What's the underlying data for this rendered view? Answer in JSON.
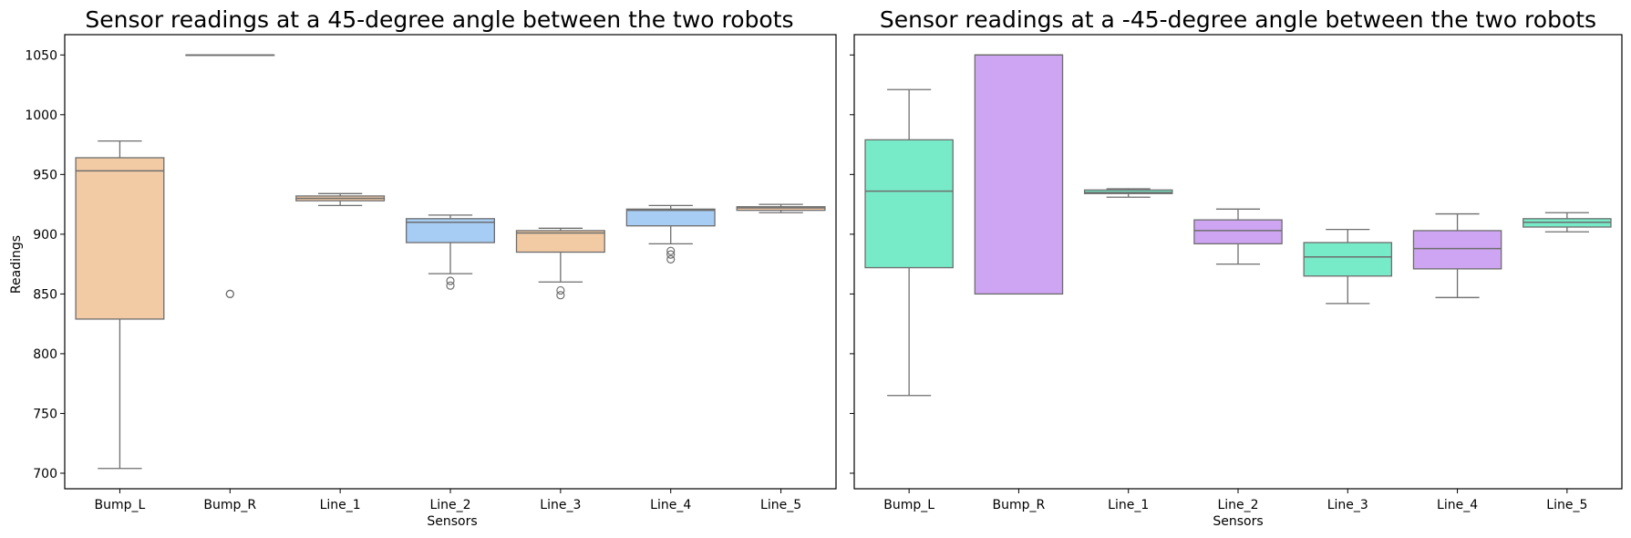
{
  "chart_data": [
    {
      "type": "box",
      "title": "Sensor readings at a 45-degree angle between the two robots",
      "xlabel": "Sensors",
      "ylabel": "Readings",
      "ylim": [
        687,
        1067
      ],
      "yticks": [
        700,
        750,
        800,
        850,
        900,
        950,
        1000,
        1050
      ],
      "categories": [
        "Bump_L",
        "Bump_R",
        "Line_1",
        "Line_2",
        "Line_3",
        "Line_4",
        "Line_5"
      ],
      "boxes": [
        {
          "category": "Bump_L",
          "whisker_low": 704,
          "q1": 829,
          "median": 953,
          "q3": 964,
          "whisker_high": 978,
          "outliers": [],
          "color": "#f2cba5"
        },
        {
          "category": "Bump_R",
          "whisker_low": 1050,
          "q1": 1050,
          "median": 1050,
          "q3": 1050,
          "whisker_high": 1050,
          "outliers": [
            850,
            850
          ],
          "color": "#a7cdf5"
        },
        {
          "category": "Line_1",
          "whisker_low": 924,
          "q1": 928,
          "median": 930,
          "q3": 932,
          "whisker_high": 934,
          "outliers": [],
          "color": "#f2cba5"
        },
        {
          "category": "Line_2",
          "whisker_low": 867,
          "q1": 893,
          "median": 910,
          "q3": 913,
          "whisker_high": 916,
          "outliers": [
            861,
            857
          ],
          "color": "#a7cdf5"
        },
        {
          "category": "Line_3",
          "whisker_low": 860,
          "q1": 885,
          "median": 901,
          "q3": 903,
          "whisker_high": 905,
          "outliers": [
            853,
            849
          ],
          "color": "#f2cba5"
        },
        {
          "category": "Line_4",
          "whisker_low": 892,
          "q1": 907,
          "median": 920,
          "q3": 921,
          "whisker_high": 924,
          "outliers": [
            886,
            883,
            879
          ],
          "color": "#a7cdf5"
        },
        {
          "category": "Line_5",
          "whisker_low": 918,
          "q1": 920,
          "median": 922,
          "q3": 923,
          "whisker_high": 925,
          "outliers": [],
          "color": "#f2cba5"
        }
      ]
    },
    {
      "type": "box",
      "title": "Sensor readings at a -45-degree angle between the two robots",
      "xlabel": "Sensors",
      "ylabel": "",
      "ylim": [
        687,
        1067
      ],
      "yticks": [
        700,
        750,
        800,
        850,
        900,
        950,
        1000,
        1050
      ],
      "categories": [
        "Bump_L",
        "Bump_R",
        "Line_1",
        "Line_2",
        "Line_3",
        "Line_4",
        "Line_5"
      ],
      "boxes": [
        {
          "category": "Bump_L",
          "whisker_low": 765,
          "q1": 872,
          "median": 936,
          "q3": 979,
          "whisker_high": 1021,
          "outliers": [],
          "color": "#77ebc8"
        },
        {
          "category": "Bump_R",
          "whisker_low": 850,
          "q1": 850,
          "median": 1050,
          "q3": 1050,
          "whisker_high": 1050,
          "outliers": [],
          "color": "#cda5f2"
        },
        {
          "category": "Line_1",
          "whisker_low": 931,
          "q1": 934,
          "median": 935,
          "q3": 937,
          "whisker_high": 938,
          "outliers": [],
          "color": "#77ebc8"
        },
        {
          "category": "Line_2",
          "whisker_low": 875,
          "q1": 892,
          "median": 903,
          "q3": 912,
          "whisker_high": 921,
          "outliers": [],
          "color": "#cda5f2"
        },
        {
          "category": "Line_3",
          "whisker_low": 842,
          "q1": 865,
          "median": 881,
          "q3": 893,
          "whisker_high": 904,
          "outliers": [],
          "color": "#77ebc8"
        },
        {
          "category": "Line_4",
          "whisker_low": 847,
          "q1": 871,
          "median": 888,
          "q3": 903,
          "whisker_high": 917,
          "outliers": [],
          "color": "#cda5f2"
        },
        {
          "category": "Line_5",
          "whisker_low": 902,
          "q1": 906,
          "median": 910,
          "q3": 913,
          "whisker_high": 918,
          "outliers": [],
          "color": "#77ebc8"
        }
      ]
    }
  ]
}
